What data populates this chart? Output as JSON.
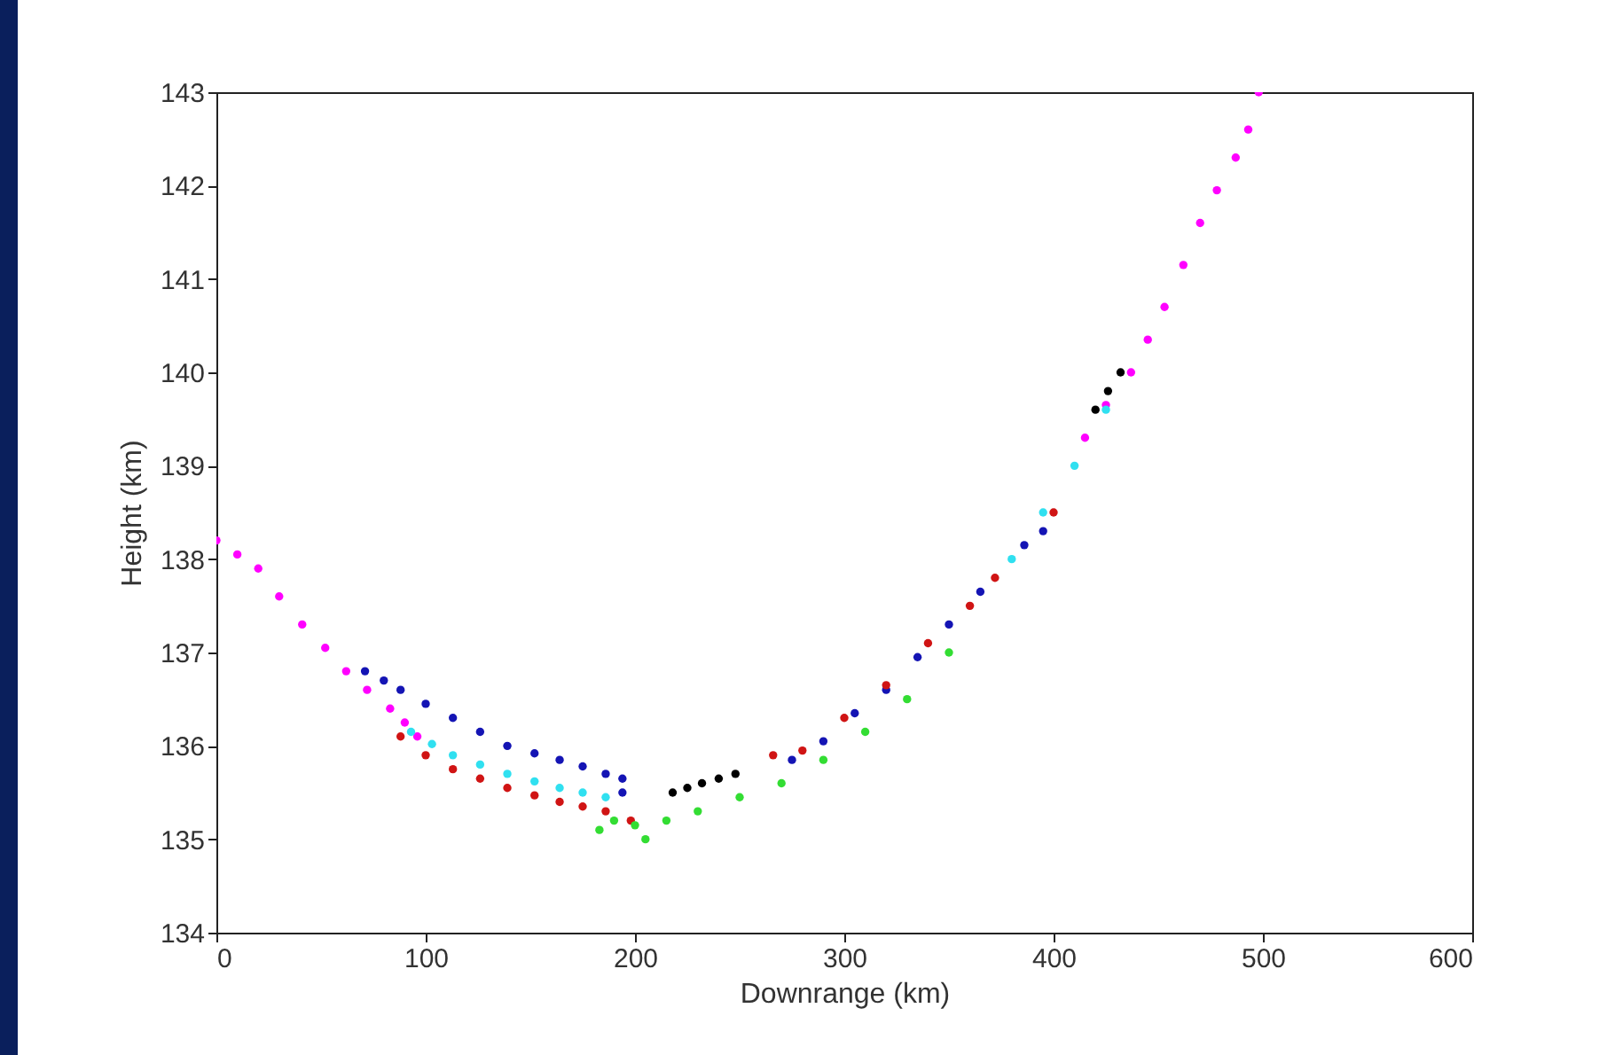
{
  "chart_data": {
    "type": "scatter",
    "xlabel": "Downrange (km)",
    "ylabel": "Height (km)",
    "xlim": [
      0,
      600
    ],
    "xticks": [
      0,
      100,
      200,
      300,
      400,
      500,
      600
    ],
    "ylim": [
      134,
      143
    ],
    "yticks": [
      134,
      135,
      136,
      137,
      138,
      139,
      140,
      141,
      142,
      143
    ],
    "grid": false,
    "marker": "circle",
    "series": [
      {
        "color": "#ff00ff",
        "x": [
          0,
          10,
          20,
          30,
          41,
          52,
          62,
          72,
          83,
          90,
          96,
          415,
          425,
          437,
          445,
          453,
          462,
          470,
          478,
          487,
          493,
          498
        ],
        "values": [
          138.2,
          138.05,
          137.9,
          137.6,
          137.3,
          137.05,
          136.8,
          136.6,
          136.4,
          136.25,
          136.1,
          139.3,
          139.65,
          140.0,
          140.35,
          140.7,
          141.15,
          141.6,
          141.95,
          142.3,
          142.6,
          143.0
        ]
      },
      {
        "color": "#1414b4",
        "x": [
          71,
          80,
          88,
          100,
          113,
          126,
          139,
          152,
          164,
          175,
          186,
          194,
          194,
          275,
          290,
          305,
          320,
          335,
          350,
          365,
          386,
          395
        ],
        "values": [
          136.8,
          136.7,
          136.6,
          136.45,
          136.3,
          136.15,
          136.0,
          135.92,
          135.85,
          135.78,
          135.7,
          135.65,
          135.5,
          135.85,
          136.05,
          136.35,
          136.6,
          136.95,
          137.3,
          137.65,
          138.15,
          138.3
        ]
      },
      {
        "color": "#30e0f0",
        "x": [
          93,
          103,
          113,
          126,
          139,
          152,
          164,
          175,
          186,
          380,
          395,
          410,
          425
        ],
        "values": [
          136.15,
          136.02,
          135.9,
          135.8,
          135.7,
          135.62,
          135.55,
          135.5,
          135.45,
          138.0,
          138.5,
          139.0,
          139.6
        ]
      },
      {
        "color": "#d01414",
        "x": [
          88,
          100,
          113,
          126,
          139,
          152,
          164,
          175,
          186,
          198,
          266,
          280,
          300,
          320,
          340,
          360,
          372,
          400
        ],
        "values": [
          136.1,
          135.9,
          135.75,
          135.65,
          135.55,
          135.47,
          135.4,
          135.35,
          135.3,
          135.2,
          135.9,
          135.95,
          136.3,
          136.65,
          137.1,
          137.5,
          137.8,
          138.5
        ]
      },
      {
        "color": "#33dd33",
        "x": [
          183,
          190,
          200,
          205,
          215,
          230,
          250,
          270,
          290,
          310,
          330,
          350
        ],
        "values": [
          135.1,
          135.2,
          135.15,
          135.0,
          135.2,
          135.3,
          135.45,
          135.6,
          135.85,
          136.15,
          136.5,
          137.0
        ]
      },
      {
        "color": "#000000",
        "x": [
          218,
          225,
          232,
          240,
          248,
          420,
          426,
          432
        ],
        "values": [
          135.5,
          135.55,
          135.6,
          135.65,
          135.7,
          139.6,
          139.8,
          140.0
        ]
      }
    ]
  }
}
